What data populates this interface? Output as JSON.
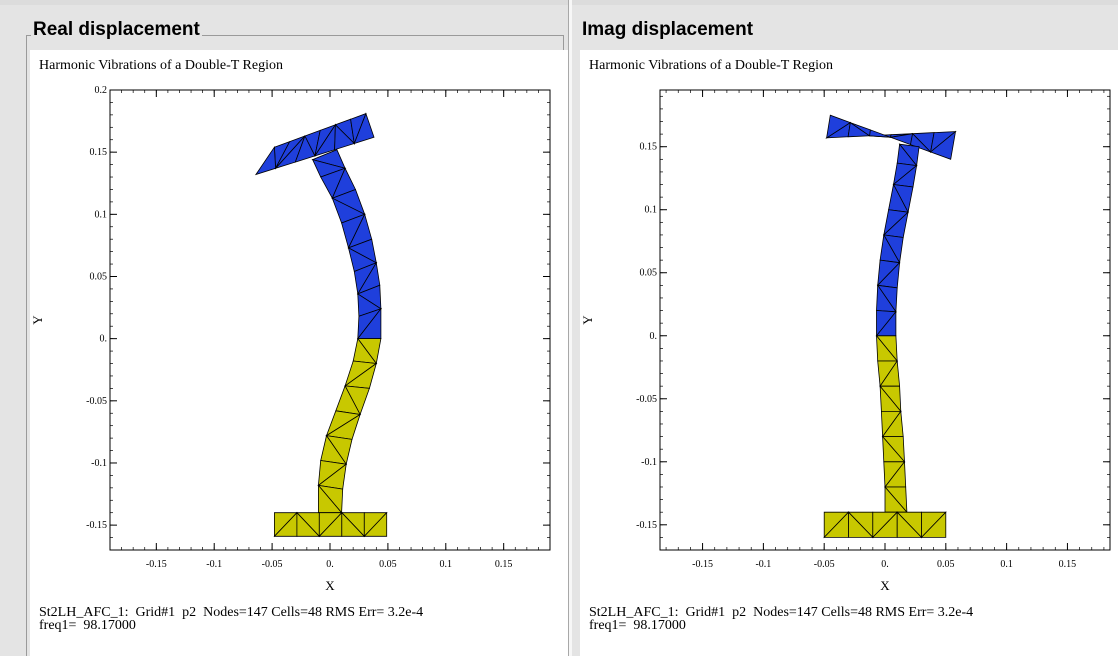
{
  "panels": [
    {
      "legend": "Real displacement",
      "plot_title": "Harmonic Vibrations of a Double-T Region",
      "xlabel": "X",
      "ylabel": "Y",
      "info_line1": "St2LH_AFC_1:  Grid#1  p2  Nodes=147 Cells=48 RMS Err= 3.2e-4",
      "info_line2": "freq1=  98.17000"
    },
    {
      "legend": "Imag displacement",
      "plot_title": "Harmonic Vibrations of a Double-T Region",
      "xlabel": "X",
      "ylabel": "Y",
      "info_line1": "St2LH_AFC_1:  Grid#1  p2  Nodes=147 Cells=48 RMS Err= 3.2e-4",
      "info_line2": "freq1=  98.17000"
    }
  ],
  "colors": {
    "upper": "#1f3fdc",
    "lower": "#c8c800",
    "stroke": "#000000"
  },
  "chart_data": [
    {
      "type": "mesh",
      "xlim": [
        -0.19,
        0.19
      ],
      "ylim": [
        -0.17,
        0.2
      ],
      "xticks": [
        -0.15,
        -0.1,
        -0.05,
        0,
        0.05,
        0.1,
        0.15
      ],
      "xtick_labels": [
        "-0.15",
        "-0.1",
        "-0.05",
        "0.",
        "0.05",
        "0.1",
        "0.15"
      ],
      "yticks": [
        -0.15,
        -0.1,
        -0.05,
        0,
        0.05,
        0.1,
        0.15,
        0.2
      ],
      "ytick_labels": [
        "-0.15",
        "-0.1",
        "-0.05",
        "0.",
        "0.05",
        "0.1",
        "0.15",
        "0.2"
      ],
      "top_bar": {
        "left": [
          [
            -0.064,
            0.132
          ],
          [
            -0.048,
            0.154
          ]
        ],
        "right": [
          [
            0.031,
            0.181
          ],
          [
            0.038,
            0.162
          ]
        ]
      },
      "stem_left": [
        [
          -0.015,
          0.144
        ],
        [
          -0.008,
          0.13
        ],
        [
          0.002,
          0.113
        ],
        [
          0.01,
          0.093
        ],
        [
          0.016,
          0.073
        ],
        [
          0.021,
          0.054
        ],
        [
          0.024,
          0.036
        ],
        [
          0.025,
          0.018
        ],
        [
          0.024,
          0.0
        ],
        [
          0.02,
          -0.018
        ],
        [
          0.013,
          -0.038
        ],
        [
          0.005,
          -0.058
        ],
        [
          -0.003,
          -0.078
        ],
        [
          -0.008,
          -0.098
        ],
        [
          -0.01,
          -0.118
        ],
        [
          -0.01,
          -0.14
        ]
      ],
      "stem_right": [
        [
          0.006,
          0.152
        ],
        [
          0.013,
          0.137
        ],
        [
          0.022,
          0.12
        ],
        [
          0.03,
          0.1
        ],
        [
          0.036,
          0.08
        ],
        [
          0.04,
          0.061
        ],
        [
          0.043,
          0.043
        ],
        [
          0.044,
          0.024
        ],
        [
          0.044,
          0.0
        ],
        [
          0.04,
          -0.02
        ],
        [
          0.034,
          -0.04
        ],
        [
          0.026,
          -0.061
        ],
        [
          0.019,
          -0.081
        ],
        [
          0.014,
          -0.101
        ],
        [
          0.011,
          -0.121
        ],
        [
          0.01,
          -0.14
        ]
      ],
      "bottom_bar": {
        "x": [
          -0.048,
          0.049
        ],
        "y": [
          -0.159,
          -0.14
        ]
      },
      "split_y": 0
    },
    {
      "type": "mesh",
      "xlim": [
        -0.185,
        0.185
      ],
      "ylim": [
        -0.17,
        0.195
      ],
      "xticks": [
        -0.15,
        -0.1,
        -0.05,
        0,
        0.05,
        0.1,
        0.15
      ],
      "xtick_labels": [
        "-0.15",
        "-0.1",
        "-0.05",
        "0.",
        "0.05",
        "0.1",
        "0.15"
      ],
      "yticks": [
        -0.15,
        -0.1,
        -0.05,
        0,
        0.05,
        0.1,
        0.15
      ],
      "ytick_labels": [
        "-0.15",
        "-0.1",
        "-0.05",
        "0.",
        "0.05",
        "0.1",
        "0.15"
      ],
      "top_bar": {
        "left": [
          [
            -0.045,
            0.175
          ],
          [
            -0.048,
            0.157
          ]
        ],
        "right": [
          [
            0.058,
            0.162
          ],
          [
            0.054,
            0.14
          ]
        ]
      },
      "stem_left": [
        [
          0.012,
          0.152
        ],
        [
          0.01,
          0.137
        ],
        [
          0.007,
          0.12
        ],
        [
          0.003,
          0.1
        ],
        [
          -0.001,
          0.08
        ],
        [
          -0.004,
          0.06
        ],
        [
          -0.006,
          0.04
        ],
        [
          -0.007,
          0.02
        ],
        [
          -0.007,
          0.0
        ],
        [
          -0.006,
          -0.02
        ],
        [
          -0.004,
          -0.04
        ],
        [
          -0.003,
          -0.06
        ],
        [
          -0.002,
          -0.08
        ],
        [
          -0.001,
          -0.1
        ],
        [
          0.0,
          -0.12
        ],
        [
          0.0,
          -0.14
        ]
      ],
      "stem_right": [
        [
          0.028,
          0.15
        ],
        [
          0.026,
          0.135
        ],
        [
          0.023,
          0.118
        ],
        [
          0.019,
          0.098
        ],
        [
          0.015,
          0.078
        ],
        [
          0.012,
          0.058
        ],
        [
          0.01,
          0.038
        ],
        [
          0.009,
          0.019
        ],
        [
          0.009,
          0.0
        ],
        [
          0.01,
          -0.02
        ],
        [
          0.012,
          -0.04
        ],
        [
          0.013,
          -0.06
        ],
        [
          0.015,
          -0.08
        ],
        [
          0.016,
          -0.1
        ],
        [
          0.017,
          -0.12
        ],
        [
          0.018,
          -0.14
        ]
      ],
      "bottom_bar": {
        "x": [
          -0.05,
          0.05
        ],
        "y": [
          -0.16,
          -0.14
        ]
      },
      "split_y": 0
    }
  ]
}
